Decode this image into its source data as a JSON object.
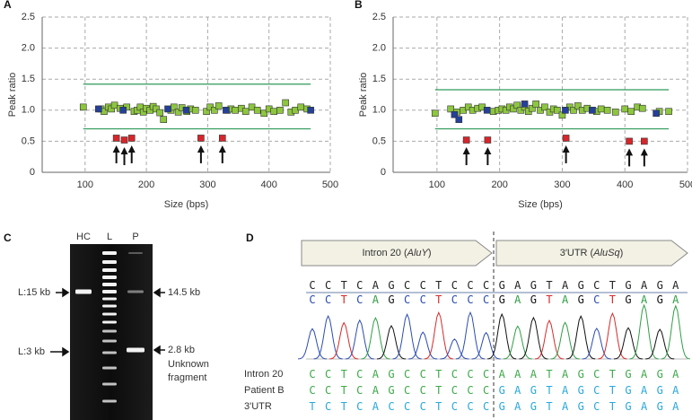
{
  "chart_data": [
    {
      "type": "scatter",
      "panel": "A",
      "x_label": "Size (bps)",
      "y_label": "Peak ratio",
      "xlim": [
        30,
        500
      ],
      "ylim": [
        0,
        2.5
      ],
      "xticks": [
        100,
        200,
        300,
        400,
        500
      ],
      "yticks": [
        0,
        0.5,
        {
          "value": 1,
          "label": "1.0"
        },
        1.5,
        {
          "value": 2,
          "label": "2.0"
        },
        2.5
      ],
      "grid": true,
      "threshold_lines": {
        "values": [
          1.42,
          0.7
        ],
        "color": "#2e9a5a"
      },
      "series": [
        {
          "color": "#8dc63f",
          "x": [
            97,
            126,
            131,
            138,
            143,
            148,
            157,
            168,
            180,
            185,
            190,
            195,
            200,
            206,
            211,
            216,
            222,
            228,
            240,
            245,
            252,
            258,
            266,
            272,
            280,
            298,
            304,
            311,
            318,
            332,
            338,
            345,
            355,
            362,
            372,
            381,
            392,
            400,
            408,
            418,
            427,
            436,
            443,
            452,
            462
          ],
          "values": [
            1.05,
            1.02,
            0.98,
            1.05,
            1.02,
            1.08,
            1.03,
            1.05,
            0.98,
            1.0,
            1.05,
            0.97,
            1.03,
            1.0,
            1.06,
            1.02,
            0.96,
            0.85,
            1.0,
            1.05,
            0.97,
            1.04,
            0.98,
            1.02,
            1.0,
            0.98,
            1.05,
            1.0,
            1.07,
            1.0,
            1.02,
            1.0,
            1.03,
            0.98,
            1.05,
            1.0,
            0.95,
            1.02,
            0.98,
            1.0,
            1.12,
            0.97,
            1.0,
            1.05,
            1.02
          ]
        },
        {
          "color": "#24409a",
          "x": [
            122,
            162,
            235,
            265,
            330,
            468
          ],
          "values": [
            1.02,
            1.0,
            1.02,
            1.0,
            1.0,
            1.0
          ]
        },
        {
          "color": "#d7262b",
          "x": [
            151,
            164,
            176,
            289,
            324
          ],
          "values": [
            0.55,
            0.52,
            0.55,
            0.55,
            0.55
          ],
          "arrows": true
        }
      ]
    },
    {
      "type": "scatter",
      "panel": "B",
      "x_label": "Size (bps)",
      "y_label": "Peak ratio",
      "xlim": [
        30,
        500
      ],
      "ylim": [
        0,
        2.5
      ],
      "xticks": [
        100,
        200,
        300,
        400,
        500
      ],
      "yticks": [
        0,
        0.5,
        {
          "value": 1,
          "label": "1.0"
        },
        1.5,
        {
          "value": 2,
          "label": "2.0"
        },
        2.5
      ],
      "grid": true,
      "threshold_lines": {
        "values": [
          1.33,
          0.7
        ],
        "color": "#2e9a5a"
      },
      "series": [
        {
          "color": "#8dc63f",
          "x": [
            97,
            122,
            132,
            142,
            150,
            157,
            165,
            172,
            190,
            198,
            204,
            210,
            216,
            222,
            228,
            234,
            240,
            246,
            252,
            258,
            265,
            272,
            280,
            286,
            292,
            300,
            312,
            318,
            325,
            332,
            340,
            348,
            355,
            362,
            372,
            385,
            400,
            410,
            420,
            428,
            455,
            470
          ],
          "values": [
            0.95,
            1.02,
            0.97,
            1.0,
            1.05,
            1.0,
            1.03,
            1.05,
            0.98,
            1.0,
            1.02,
            1.0,
            1.05,
            1.02,
            1.08,
            1.0,
            1.05,
            0.98,
            1.03,
            1.1,
            1.0,
            1.05,
            0.97,
            1.02,
            1.0,
            0.92,
            1.05,
            1.0,
            1.07,
            1.0,
            1.03,
            1.0,
            0.98,
            1.02,
            1.0,
            0.97,
            1.02,
            0.98,
            1.05,
            1.03,
            0.98,
            0.98
          ]
        },
        {
          "color": "#24409a",
          "x": [
            128,
            135,
            180,
            240,
            305,
            348,
            450
          ],
          "values": [
            0.93,
            0.85,
            1.0,
            1.1,
            1.0,
            1.0,
            0.95
          ]
        },
        {
          "color": "#d7262b",
          "x": [
            147,
            181,
            306,
            407,
            431
          ],
          "values": [
            0.52,
            0.52,
            0.55,
            0.5,
            0.5
          ],
          "arrows": true
        }
      ]
    }
  ],
  "panel_c": {
    "label": "C",
    "lanes": [
      "HC",
      "L",
      "P"
    ],
    "left_markers": [
      "L:15 kb",
      "L:3 kb"
    ],
    "right_markers": [
      "14.5 kb",
      "2.8 kb"
    ],
    "note": [
      "Unknown",
      "fragment"
    ]
  },
  "panel_d": {
    "label": "D",
    "regions": [
      {
        "text": "Intron 20 (AluY)",
        "italic": "AluY"
      },
      {
        "text": "3′UTR (AluSq)",
        "italic": "AluSq"
      }
    ],
    "called": "CCTCAGCCTCCCGAGTAGCTGAGA",
    "base_colors": {
      "A": "#2f9e44",
      "C": "#2b4cb3",
      "G": "#111111",
      "T": "#d62a2a"
    },
    "alignment": [
      {
        "name": "Intron 20",
        "sequence": "CCTCAGCCTCCCAAATAGCTGAGA",
        "colors": [
          "#3daa4a",
          "#3daa4a"
        ]
      },
      {
        "name": "Patient B",
        "sequence": "CCTCAGCCTCCCGAGTAGCTGAGA",
        "colors": [
          "#3daa4a",
          "#29a8dc"
        ]
      },
      {
        "name": "3'UTR",
        "sequence": "TCTCACCCTCCCGAGTAGCTGAGA",
        "colors": [
          "#29a8dc",
          "#29a8dc"
        ]
      }
    ]
  }
}
